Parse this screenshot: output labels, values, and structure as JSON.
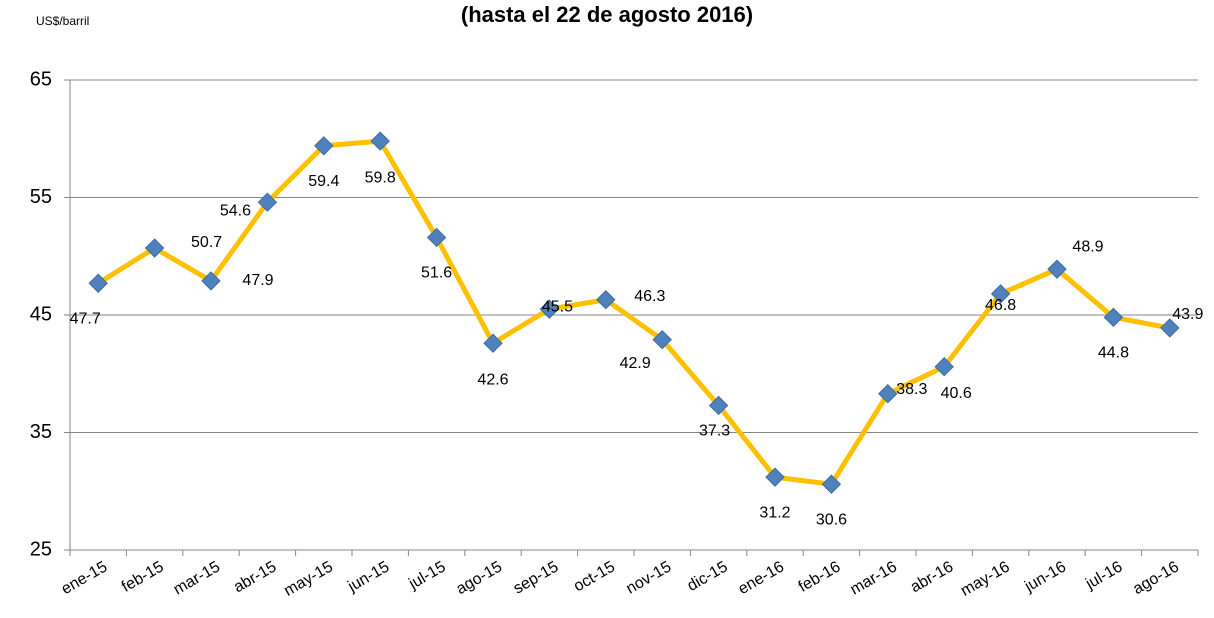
{
  "chart_data": {
    "type": "line",
    "title": "(hasta el 22 de agosto 2016)",
    "y_label": "US$/barril",
    "categories": [
      "ene-15",
      "feb-15",
      "mar-15",
      "abr-15",
      "may-15",
      "jun-15",
      "jul-15",
      "ago-15",
      "sep-15",
      "oct-15",
      "nov-15",
      "dic-15",
      "ene-16",
      "feb-16",
      "mar-16",
      "abr-16",
      "may-16",
      "jun-16",
      "jul-16",
      "ago-16"
    ],
    "values": [
      47.7,
      50.7,
      47.9,
      54.6,
      59.4,
      59.8,
      51.6,
      42.6,
      45.5,
      46.3,
      42.9,
      37.3,
      31.2,
      30.6,
      38.3,
      40.6,
      46.8,
      48.9,
      44.8,
      43.9
    ],
    "line_color": "#FFC000",
    "marker_color": "#4F81BD",
    "ylim": [
      25,
      65
    ],
    "yticks": [
      25,
      35,
      45,
      55,
      65
    ],
    "grid": true
  }
}
